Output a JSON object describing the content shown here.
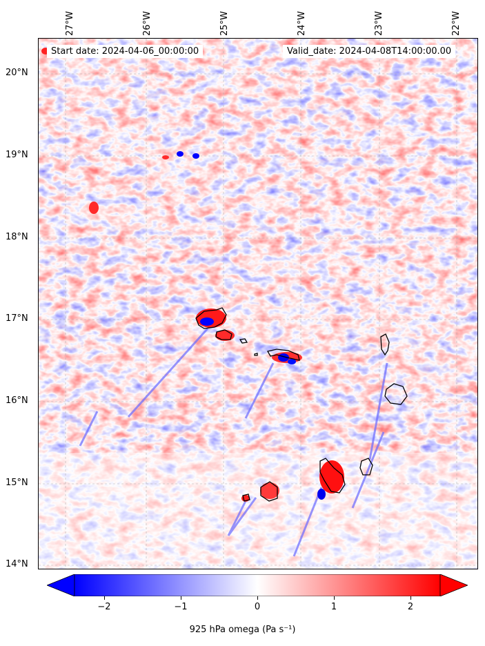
{
  "map": {
    "start_label": "Start date: 2024-04-06_00:00:00",
    "valid_label": "Valid_date: 2024-04-08T14:00:00.00",
    "longitude_labels": [
      "27°W",
      "26°W",
      "25°W",
      "24°W",
      "23°W",
      "22°W"
    ],
    "latitude_labels": [
      "20°N",
      "19°N",
      "18°N",
      "17°N",
      "16°N",
      "15°N",
      "14°N"
    ],
    "gridlines": true,
    "field": "925 hPa omega",
    "colormap": "bwr",
    "colors": {
      "negative": "#0000ff",
      "zero": "#ffffff",
      "positive": "#ff0000",
      "coast": "#000000",
      "grid": "#b0b0b0"
    }
  },
  "colorbar": {
    "label": "925 hPa omega (Pa s⁻¹)",
    "ticks": [
      "−2",
      "−1",
      "0",
      "1",
      "2"
    ],
    "range": [
      -2.5,
      2.5
    ],
    "extend": "both"
  }
}
